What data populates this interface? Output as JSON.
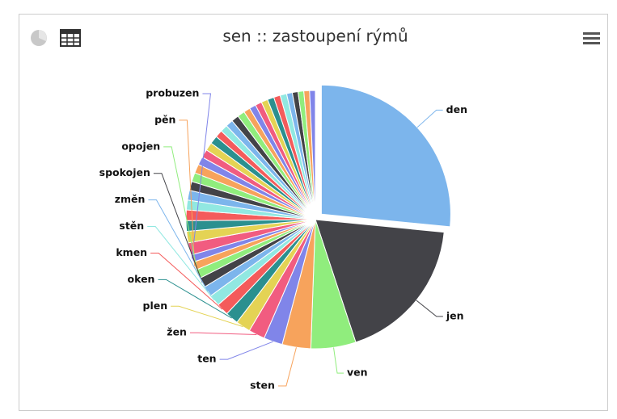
{
  "chart_data": {
    "type": "pie",
    "title": "sen :: zastoupení rýmů",
    "categories": [
      "den",
      "jen",
      "ven",
      "sten",
      "ten",
      "žen",
      "plen",
      "oken",
      "kmen",
      "stěn",
      "změn",
      "spokojen",
      "opojen",
      "pěn",
      "probuzen",
      null,
      null,
      null,
      null,
      null,
      null,
      null,
      null,
      null,
      null,
      null,
      null,
      null,
      null,
      null,
      null,
      null,
      null,
      null,
      null,
      null,
      null,
      null,
      null,
      null,
      null,
      null,
      null,
      null,
      null
    ],
    "values": [
      26,
      18,
      5.5,
      3.5,
      2.3,
      2,
      1.8,
      1.6,
      1.5,
      1.4,
      1.3,
      1.2,
      1.1,
      1,
      0.9,
      1.5,
      1.4,
      1.3,
      1.3,
      1.2,
      1.2,
      1.1,
      1.1,
      1.1,
      1,
      1,
      1,
      1,
      0.9,
      0.9,
      0.9,
      0.9,
      0.9,
      0.8,
      0.8,
      0.8,
      0.8,
      0.8,
      0.8,
      0.8,
      0.7,
      0.7,
      0.7,
      0.7,
      0.7
    ],
    "palette": [
      "#7cb5ec",
      "#434348",
      "#90ed7d",
      "#f7a35c",
      "#8085e9",
      "#f15c80",
      "#e4d354",
      "#2b908f",
      "#f45b5b",
      "#91e8e1"
    ],
    "explode": [
      0
    ]
  }
}
